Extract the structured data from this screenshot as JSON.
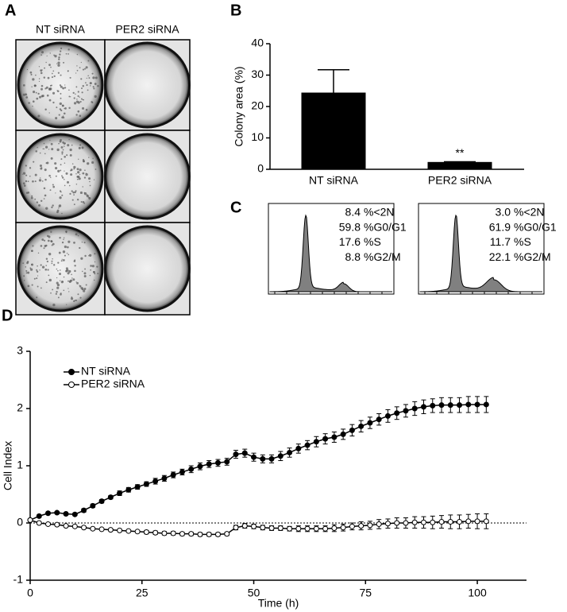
{
  "chart_data": [
    {
      "type": "image-grid",
      "panel": "A",
      "columns": [
        "NT siRNA",
        "PER2 siRNA"
      ]
    },
    {
      "type": "bar",
      "panel": "B",
      "ylabel": "Colony area (%)",
      "categories": [
        "NT siRNA",
        "PER2 siRNA"
      ],
      "values": [
        24.3,
        2.2
      ],
      "errors": [
        7.4,
        0.2
      ],
      "color": "#000000",
      "annotation": "**",
      "ylim": [
        0,
        40
      ],
      "yticks": [
        0,
        10,
        20,
        30,
        40
      ]
    },
    {
      "type": "flow-histograms",
      "panel": "C",
      "labels": [
        "%<2N",
        "%G0/G1",
        "%S",
        "%G2/M"
      ],
      "color": "#808080",
      "samples": [
        {
          "values": [
            8.4,
            59.8,
            17.6,
            8.8
          ]
        },
        {
          "values": [
            3.0,
            61.9,
            11.7,
            22.1
          ],
          "value_labels": [
            "3.0",
            "61.9",
            "11.7",
            "22.1"
          ]
        }
      ]
    },
    {
      "type": "line",
      "panel": "D",
      "xlabel": "Time (h)",
      "ylabel": "Cell Index",
      "legend": "upper left",
      "zero_line": true,
      "x": [
        0,
        2,
        4,
        6,
        8,
        10,
        12,
        14,
        16,
        18,
        20,
        22,
        24,
        26,
        28,
        30,
        32,
        34,
        36,
        38,
        40,
        42,
        44,
        46,
        48,
        50,
        52,
        54,
        56,
        58,
        60,
        62,
        64,
        66,
        68,
        70,
        72,
        74,
        76,
        78,
        80,
        82,
        84,
        86,
        88,
        90,
        92,
        94,
        96,
        98,
        100,
        102
      ],
      "series": [
        {
          "name": "NT siRNA",
          "color": "#000000",
          "filled": true,
          "values": [
            0.05,
            0.12,
            0.17,
            0.18,
            0.16,
            0.15,
            0.22,
            0.3,
            0.38,
            0.45,
            0.52,
            0.58,
            0.63,
            0.68,
            0.73,
            0.78,
            0.84,
            0.89,
            0.94,
            0.99,
            1.03,
            1.05,
            1.07,
            1.2,
            1.22,
            1.15,
            1.12,
            1.12,
            1.17,
            1.23,
            1.3,
            1.36,
            1.42,
            1.47,
            1.5,
            1.55,
            1.62,
            1.69,
            1.75,
            1.81,
            1.87,
            1.92,
            1.96,
            2.0,
            2.03,
            2.05,
            2.06,
            2.06,
            2.06,
            2.07,
            2.07,
            2.07
          ],
          "errors": [
            0.02,
            0.02,
            0.02,
            0.02,
            0.02,
            0.02,
            0.03,
            0.03,
            0.03,
            0.03,
            0.04,
            0.04,
            0.04,
            0.04,
            0.05,
            0.05,
            0.05,
            0.05,
            0.06,
            0.06,
            0.06,
            0.06,
            0.06,
            0.07,
            0.07,
            0.07,
            0.07,
            0.07,
            0.08,
            0.08,
            0.08,
            0.08,
            0.09,
            0.09,
            0.09,
            0.09,
            0.1,
            0.1,
            0.1,
            0.1,
            0.11,
            0.11,
            0.11,
            0.12,
            0.12,
            0.12,
            0.13,
            0.13,
            0.13,
            0.14,
            0.14,
            0.14
          ]
        },
        {
          "name": "PER2 siRNA",
          "color": "#000000",
          "filled": false,
          "values": [
            0.05,
            0.0,
            -0.02,
            -0.03,
            -0.05,
            -0.06,
            -0.08,
            -0.1,
            -0.11,
            -0.12,
            -0.13,
            -0.14,
            -0.15,
            -0.16,
            -0.17,
            -0.18,
            -0.18,
            -0.19,
            -0.19,
            -0.2,
            -0.2,
            -0.2,
            -0.19,
            -0.08,
            -0.05,
            -0.06,
            -0.08,
            -0.09,
            -0.09,
            -0.1,
            -0.1,
            -0.1,
            -0.1,
            -0.1,
            -0.09,
            -0.08,
            -0.06,
            -0.05,
            -0.04,
            -0.02,
            -0.01,
            0.0,
            0.0,
            0.01,
            0.01,
            0.01,
            0.02,
            0.02,
            0.02,
            0.03,
            0.03,
            0.03
          ],
          "errors": [
            0.02,
            0.02,
            0.02,
            0.02,
            0.02,
            0.02,
            0.02,
            0.02,
            0.02,
            0.02,
            0.02,
            0.02,
            0.02,
            0.03,
            0.03,
            0.03,
            0.03,
            0.03,
            0.03,
            0.03,
            0.03,
            0.03,
            0.03,
            0.04,
            0.04,
            0.04,
            0.04,
            0.04,
            0.04,
            0.04,
            0.05,
            0.05,
            0.05,
            0.05,
            0.06,
            0.06,
            0.06,
            0.07,
            0.07,
            0.08,
            0.08,
            0.09,
            0.09,
            0.1,
            0.1,
            0.11,
            0.11,
            0.12,
            0.12,
            0.12,
            0.13,
            0.13
          ]
        }
      ],
      "xlim": [
        0,
        111
      ],
      "xticks": [
        0,
        25,
        50,
        75,
        100
      ],
      "ylim": [
        -1,
        3
      ],
      "yticks": [
        -1,
        0,
        1,
        2,
        3
      ]
    }
  ]
}
